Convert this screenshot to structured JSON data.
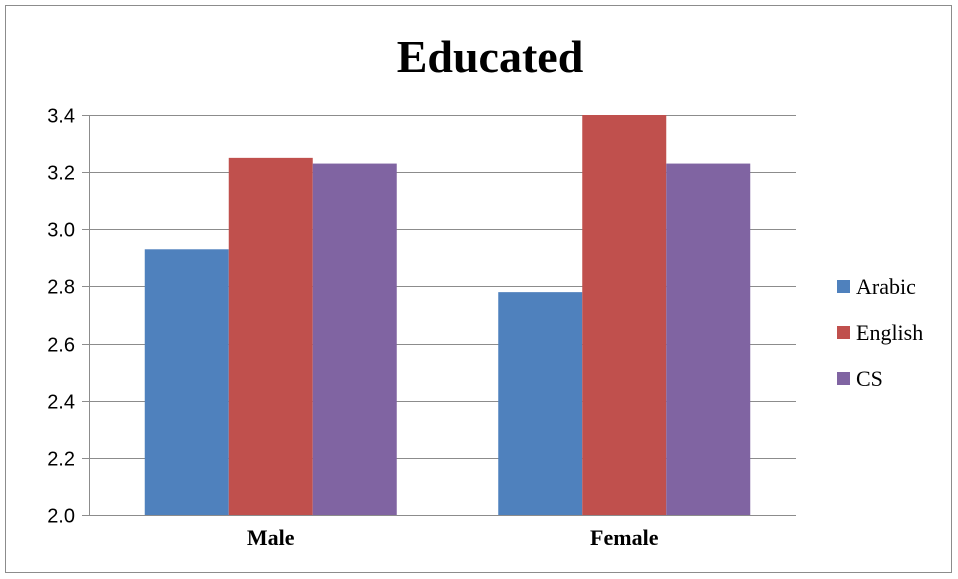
{
  "chart_data": {
    "type": "bar",
    "title": "Educated",
    "xlabel": "",
    "ylabel": "",
    "categories": [
      "Male",
      "Female"
    ],
    "series": [
      {
        "name": "Arabic",
        "color": "#4f81bd",
        "values": [
          2.93,
          2.78
        ]
      },
      {
        "name": "English",
        "color": "#c0504d",
        "values": [
          3.25,
          3.4
        ]
      },
      {
        "name": "CS",
        "color": "#8064a2",
        "values": [
          3.23,
          3.23
        ]
      }
    ],
    "ylim": [
      2.0,
      3.4
    ],
    "yticks": [
      "2.0",
      "2.2",
      "2.4",
      "2.6",
      "2.8",
      "3.0",
      "3.2",
      "3.4"
    ],
    "grid": true,
    "legend_position": "right"
  }
}
